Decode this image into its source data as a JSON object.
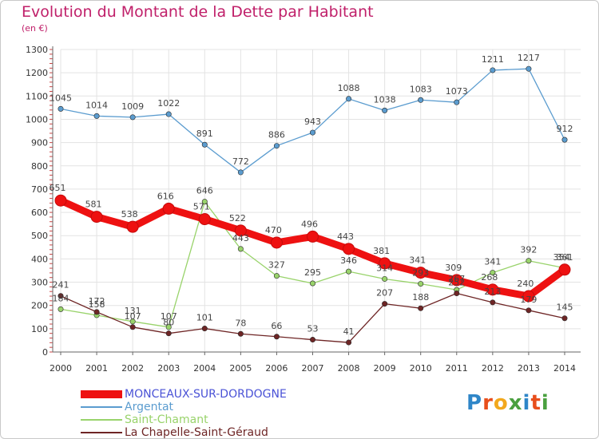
{
  "title": "Evolution du Montant de la Dette par Habitant",
  "subtitle": "(en €)",
  "logo": {
    "text": "Proxiti",
    "colors": [
      "#2f86c8",
      "#e84e1b",
      "#f2a81d",
      "#4aa03f",
      "#2f86c8",
      "#e84e1b",
      "#4aa03f"
    ]
  },
  "chart_data": {
    "type": "line",
    "x": [
      "2000",
      "2001",
      "2002",
      "2003",
      "2004",
      "2005",
      "2006",
      "2007",
      "2008",
      "2009",
      "2010",
      "2011",
      "2012",
      "2013",
      "2014"
    ],
    "ylim": [
      0,
      1300
    ],
    "yticks": [
      0,
      100,
      200,
      300,
      400,
      500,
      600,
      700,
      800,
      900,
      1000,
      1100,
      1200,
      1300
    ],
    "grid": true,
    "legend_position": "bottom-left",
    "series": [
      {
        "name": "Argentat",
        "color": "#5b9ccf",
        "values": [
          1045,
          1014,
          1009,
          1022,
          891,
          772,
          886,
          943,
          1088,
          1038,
          1083,
          1073,
          1211,
          1217,
          912
        ],
        "labels": [
          "1045",
          "1014",
          "1009",
          "1022",
          "891",
          "772",
          "886",
          "943",
          "1088",
          "1038",
          "1083",
          "1073",
          "1211",
          "1217",
          "912"
        ]
      },
      {
        "name": "Saint-Chamant",
        "color": "#99d36b",
        "values": [
          184,
          158,
          131,
          107,
          646,
          443,
          327,
          295,
          346,
          314,
          293,
          267,
          341,
          392,
          361
        ],
        "labels": [
          "184",
          "158",
          "131",
          "107",
          "646",
          "443",
          "327",
          "295",
          "346",
          "314",
          "293",
          "267",
          "341",
          "392",
          "361"
        ]
      },
      {
        "name": "La Chapelle-Saint-Géraud",
        "color": "#6e2525",
        "values": [
          241,
          172,
          107,
          80,
          101,
          78,
          66,
          53,
          41,
          207,
          188,
          252,
          213,
          179,
          145
        ],
        "labels": [
          "241",
          "172",
          "107",
          "80",
          "101",
          "78",
          "66",
          "53",
          "41",
          "207",
          "188",
          "252",
          "213",
          "179",
          "145"
        ]
      },
      {
        "name": "MONCEAUX-SUR-DORDOGNE",
        "color": "#ee1111",
        "values": [
          651,
          581,
          538,
          616,
          571,
          522,
          470,
          496,
          443,
          381,
          341,
          309,
          268,
          240,
          354
        ],
        "labels": [
          "651",
          "581",
          "538",
          "616",
          "571",
          "522",
          "470",
          "496",
          "443",
          "381",
          "341",
          "309",
          "268",
          "240",
          "354"
        ]
      }
    ]
  }
}
